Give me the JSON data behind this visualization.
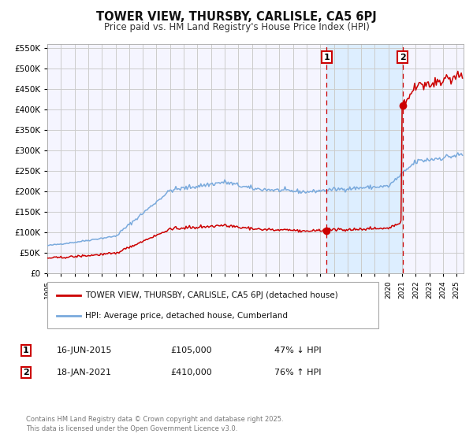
{
  "title": "TOWER VIEW, THURSBY, CARLISLE, CA5 6PJ",
  "subtitle": "Price paid vs. HM Land Registry's House Price Index (HPI)",
  "legend_entry1": "TOWER VIEW, THURSBY, CARLISLE, CA5 6PJ (detached house)",
  "legend_entry2": "HPI: Average price, detached house, Cumberland",
  "annotation1_text": "16-JUN-2015",
  "annotation1_value": "£105,000",
  "annotation1_pct": "47% ↓ HPI",
  "annotation2_text": "18-JAN-2021",
  "annotation2_value": "£410,000",
  "annotation2_pct": "76% ↑ HPI",
  "hpi_color": "#7aaadd",
  "price_color": "#cc0000",
  "shaded_color": "#ddeeff",
  "dashed_line_color": "#cc0000",
  "grid_color": "#cccccc",
  "background_color": "#ffffff",
  "plot_bg_color": "#f5f5ff",
  "ylim_max": 560000,
  "ylim_min": 0,
  "copyright_text": "Contains HM Land Registry data © Crown copyright and database right 2025.\nThis data is licensed under the Open Government Licence v3.0.",
  "t1": 2015.458,
  "t2": 2021.042,
  "sale1_val": 105000,
  "sale2_val": 410000
}
